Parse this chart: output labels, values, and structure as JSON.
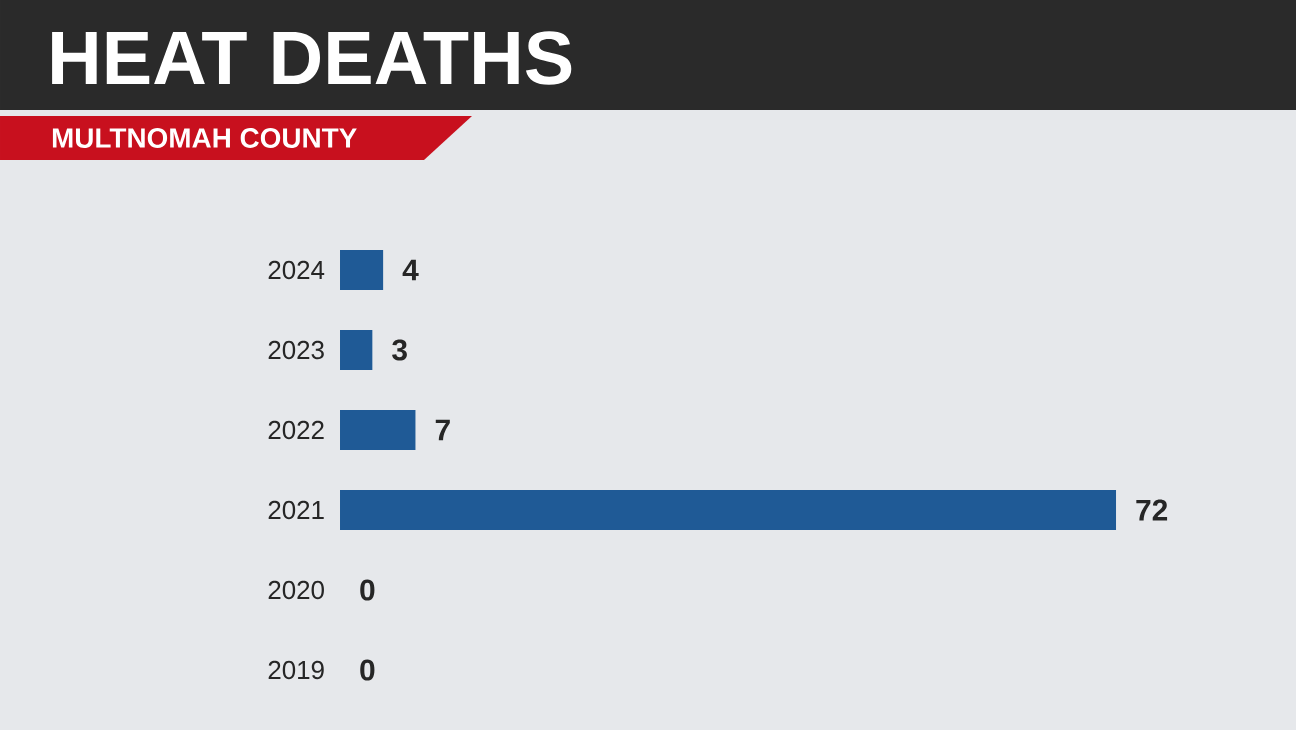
{
  "chart_data": {
    "type": "bar",
    "orientation": "horizontal",
    "title": "HEAT DEATHS",
    "subtitle": "MULTNOMAH COUNTY",
    "categories": [
      "2024",
      "2023",
      "2022",
      "2021",
      "2020",
      "2019"
    ],
    "values": [
      4,
      3,
      7,
      72,
      0,
      0
    ],
    "color": "#1f5a96",
    "data_labels": true
  }
}
